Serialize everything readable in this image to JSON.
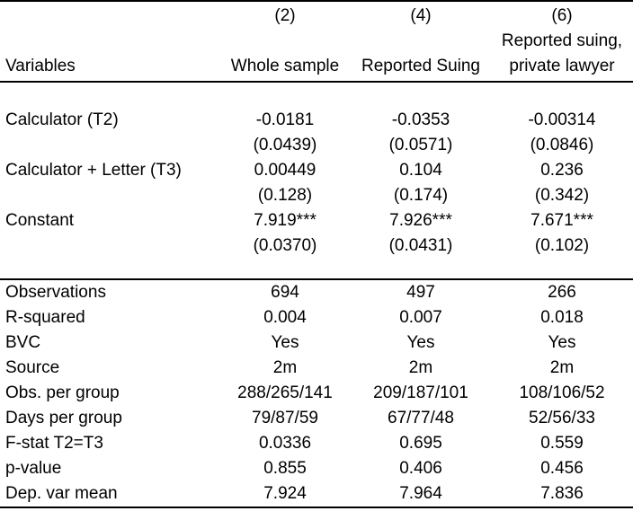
{
  "header": {
    "column_numbers": [
      "(2)",
      "(4)",
      "(6)"
    ],
    "col3_line1": "Reported suing,",
    "variables_label": "Variables",
    "column_names": [
      "Whole sample",
      "Reported Suing",
      "private lawyer"
    ]
  },
  "coefficients": [
    {
      "label": "Calculator (T2)",
      "values": [
        "-0.0181",
        "-0.0353",
        "-0.00314"
      ],
      "se": [
        "(0.0439)",
        "(0.0571)",
        "(0.0846)"
      ]
    },
    {
      "label": "Calculator + Letter (T3)",
      "values": [
        "0.00449",
        "0.104",
        "0.236"
      ],
      "se": [
        "(0.128)",
        "(0.174)",
        "(0.342)"
      ]
    },
    {
      "label": "Constant",
      "values": [
        "7.919***",
        "7.926***",
        "7.671***"
      ],
      "se": [
        "(0.0370)",
        "(0.0431)",
        "(0.102)"
      ]
    }
  ],
  "stats": [
    {
      "label": "Observations",
      "values": [
        "694",
        "497",
        "266"
      ]
    },
    {
      "label": "R-squared",
      "values": [
        "0.004",
        "0.007",
        "0.018"
      ]
    },
    {
      "label": "BVC",
      "values": [
        "Yes",
        "Yes",
        "Yes"
      ]
    },
    {
      "label": "Source",
      "values": [
        "2m",
        "2m",
        "2m"
      ]
    },
    {
      "label": "Obs. per group",
      "values": [
        "288/265/141",
        "209/187/101",
        "108/106/52"
      ]
    },
    {
      "label": "Days per group",
      "values": [
        "79/87/59",
        "67/77/48",
        "52/56/33"
      ]
    },
    {
      "label": "F-stat T2=T3",
      "values": [
        "0.0336",
        "0.695",
        "0.559"
      ]
    },
    {
      "label": "p-value",
      "values": [
        "0.855",
        "0.406",
        "0.456"
      ]
    },
    {
      "label": "Dep. var mean",
      "values": [
        "7.924",
        "7.964",
        "7.836"
      ]
    }
  ]
}
